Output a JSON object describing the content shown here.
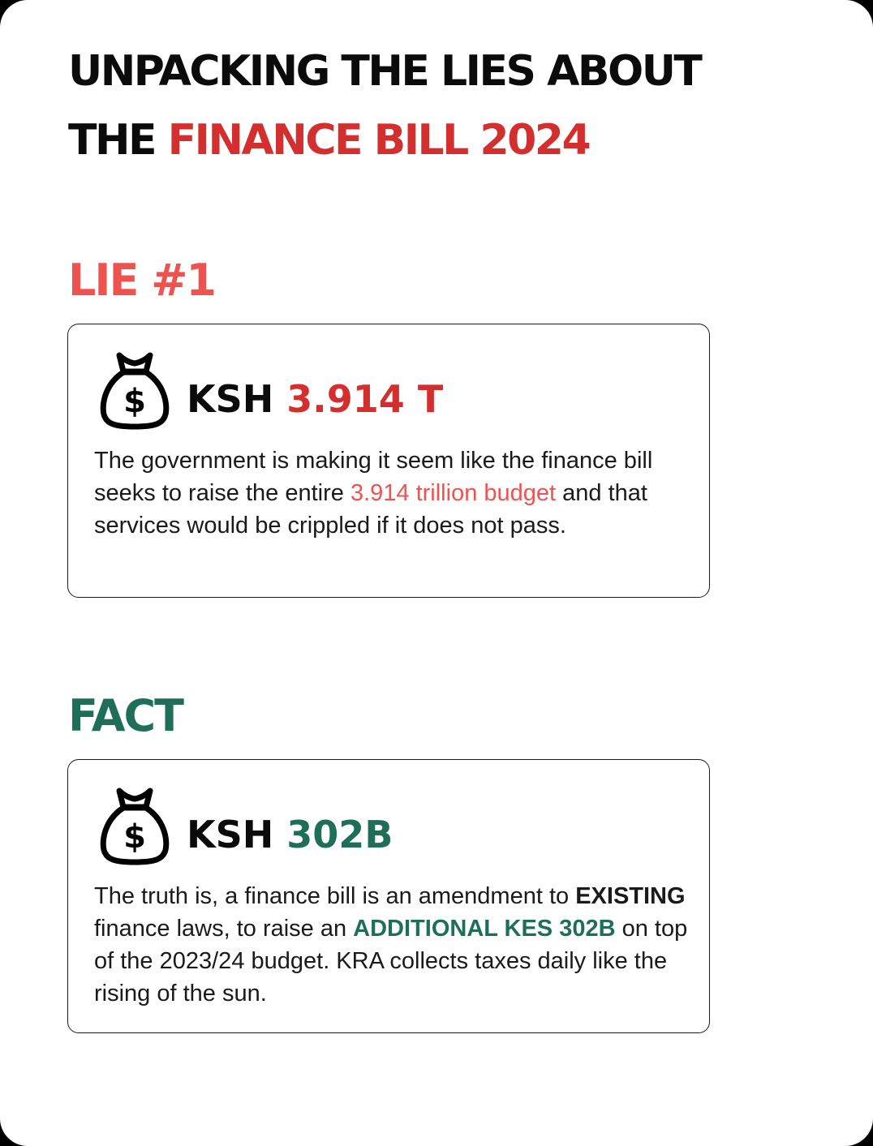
{
  "title": {
    "line1": "UNPACKING THE LIES ABOUT",
    "line2_prefix": "THE",
    "line2_highlight": "FINANCE BILL 2024"
  },
  "lie": {
    "heading": "LIE #1",
    "icon": "money-bag-dollar-icon",
    "currency": "KSH",
    "amount": "3.914 T",
    "text_part1": "The government is making it seem like the finance bill seeks to raise the entire ",
    "text_highlight": "3.914 trillion budget",
    "text_part2": " and that services would be crippled if it does not pass."
  },
  "fact": {
    "heading": "FACT",
    "icon": "money-bag-dollar-icon",
    "currency": "KSH",
    "amount": "302B",
    "text_part1": "The truth is, a finance bill is an amendment to ",
    "text_bold": "EXISTING",
    "text_part2": " finance laws, to raise an ",
    "text_highlight": "ADDITIONAL KES 302B",
    "text_part3": " on top of the 2023/24 budget. KRA collects taxes daily like the rising of the sun."
  },
  "colors": {
    "dark_red": "#d32f2f",
    "light_red": "#ef5350",
    "green": "#1e6e5a",
    "text": "#1a1a1a"
  }
}
